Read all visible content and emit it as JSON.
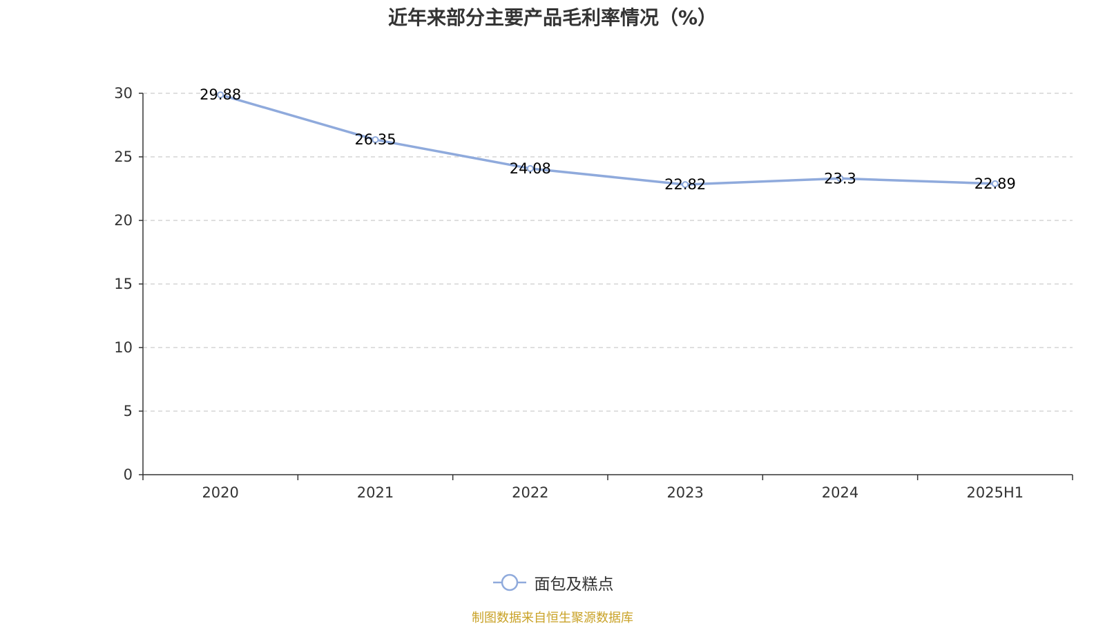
{
  "chart_data": {
    "type": "line",
    "title": "近年来部分主要产品毛利率情况（%）",
    "xlabel": "",
    "ylabel": "",
    "categories": [
      "2020",
      "2021",
      "2022",
      "2023",
      "2024",
      "2025H1"
    ],
    "series": [
      {
        "name": "面包及糕点",
        "values": [
          29.88,
          26.35,
          24.08,
          22.82,
          23.3,
          22.89
        ],
        "data_labels": [
          "29.88",
          "26.35",
          "24.08",
          "22.82",
          "23.3",
          "22.89"
        ],
        "color": "#8faadc"
      }
    ],
    "ylim": [
      0,
      30
    ],
    "yticks": [
      0,
      5,
      10,
      15,
      20,
      25,
      30
    ],
    "grid": true,
    "grid_style": "dashed",
    "legend_position": "bottom-center"
  },
  "source_note": "制图数据来自恒生聚源数据库",
  "colors": {
    "line": "#8faadc",
    "axis": "#333333",
    "grid": "#cccccc",
    "source_note": "#c9a227"
  }
}
